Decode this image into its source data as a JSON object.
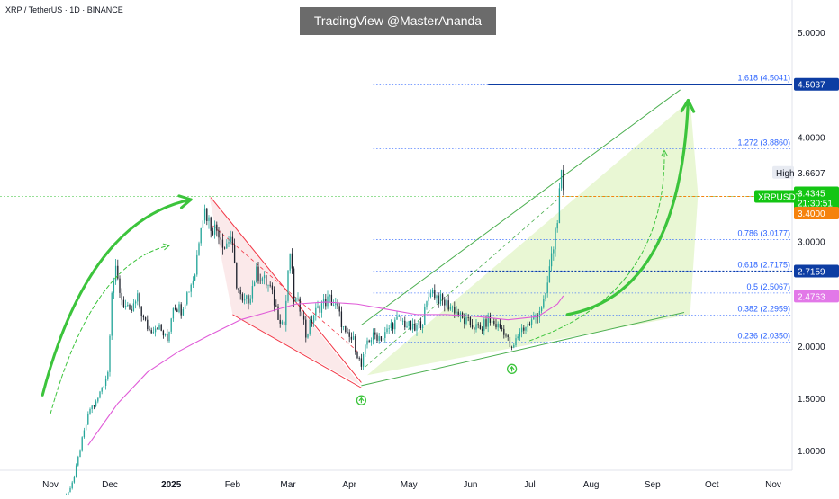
{
  "header": {
    "symbol_title": "XRP / TetherUS · 1D · BINANCE",
    "watermark": "TradingView @MasterAnanda"
  },
  "chart_data": {
    "type": "candlestick",
    "symbol": "XRPUSDT",
    "interval": "1D",
    "exchange": "BINANCE",
    "ylim": [
      0.75,
      5.5
    ],
    "y_ticks": [
      "1.0000",
      "1.5000",
      "2.0000",
      "2.5000",
      "3.0000",
      "3.5000",
      "4.0000",
      "4.5000",
      "5.0000"
    ],
    "x_ticks": [
      "Nov",
      "Dec",
      "2025",
      "Feb",
      "Mar",
      "Apr",
      "May",
      "Jun",
      "Jul",
      "Aug",
      "Sep",
      "Oct",
      "Nov"
    ],
    "date_start": "2024-11-05",
    "date_end": "2025-07-18",
    "close_path": [
      [
        "2024-11-05",
        0.5
      ],
      [
        "2024-11-10",
        0.6
      ],
      [
        "2024-11-13",
        0.75
      ],
      [
        "2024-11-17",
        1.1
      ],
      [
        "2024-11-21",
        1.4
      ],
      [
        "2024-11-24",
        1.45
      ],
      [
        "2024-11-27",
        1.6
      ],
      [
        "2024-11-30",
        1.75
      ],
      [
        "2024-12-02",
        2.55
      ],
      [
        "2024-12-04",
        2.7
      ],
      [
        "2024-12-07",
        2.45
      ],
      [
        "2024-12-11",
        2.3
      ],
      [
        "2024-12-15",
        2.45
      ],
      [
        "2024-12-18",
        2.25
      ],
      [
        "2024-12-21",
        2.15
      ],
      [
        "2024-12-25",
        2.2
      ],
      [
        "2024-12-30",
        2.05
      ],
      [
        "2025-01-02",
        2.4
      ],
      [
        "2025-01-06",
        2.35
      ],
      [
        "2025-01-09",
        2.5
      ],
      [
        "2025-01-13",
        2.7
      ],
      [
        "2025-01-16",
        3.2
      ],
      [
        "2025-01-18",
        3.3
      ],
      [
        "2025-01-21",
        3.15
      ],
      [
        "2025-01-25",
        3.1
      ],
      [
        "2025-01-28",
        2.95
      ],
      [
        "2025-01-31",
        3.05
      ],
      [
        "2025-02-03",
        2.6
      ],
      [
        "2025-02-06",
        2.4
      ],
      [
        "2025-02-09",
        2.45
      ],
      [
        "2025-02-13",
        2.7
      ],
      [
        "2025-02-16",
        2.65
      ],
      [
        "2025-02-20",
        2.55
      ],
      [
        "2025-02-24",
        2.3
      ],
      [
        "2025-02-27",
        2.2
      ],
      [
        "2025-03-02",
        2.9
      ],
      [
        "2025-03-04",
        2.45
      ],
      [
        "2025-03-08",
        2.35
      ],
      [
        "2025-03-10",
        2.1
      ],
      [
        "2025-03-14",
        2.3
      ],
      [
        "2025-03-18",
        2.4
      ],
      [
        "2025-03-22",
        2.45
      ],
      [
        "2025-03-26",
        2.35
      ],
      [
        "2025-03-30",
        2.1
      ],
      [
        "2025-04-03",
        2.05
      ],
      [
        "2025-04-07",
        1.8
      ],
      [
        "2025-04-10",
        2.05
      ],
      [
        "2025-04-14",
        2.1
      ],
      [
        "2025-04-18",
        2.08
      ],
      [
        "2025-04-22",
        2.2
      ],
      [
        "2025-04-26",
        2.25
      ],
      [
        "2025-04-30",
        2.2
      ],
      [
        "2025-05-04",
        2.15
      ],
      [
        "2025-05-08",
        2.25
      ],
      [
        "2025-05-12",
        2.55
      ],
      [
        "2025-05-16",
        2.45
      ],
      [
        "2025-05-20",
        2.4
      ],
      [
        "2025-05-24",
        2.35
      ],
      [
        "2025-05-28",
        2.25
      ],
      [
        "2025-06-02",
        2.2
      ],
      [
        "2025-06-06",
        2.15
      ],
      [
        "2025-06-10",
        2.25
      ],
      [
        "2025-06-14",
        2.2
      ],
      [
        "2025-06-18",
        2.15
      ],
      [
        "2025-06-22",
        1.95
      ],
      [
        "2025-06-26",
        2.15
      ],
      [
        "2025-06-30",
        2.2
      ],
      [
        "2025-07-03",
        2.25
      ],
      [
        "2025-07-06",
        2.35
      ],
      [
        "2025-07-09",
        2.45
      ],
      [
        "2025-07-11",
        2.75
      ],
      [
        "2025-07-13",
        2.95
      ],
      [
        "2025-07-15",
        3.25
      ],
      [
        "2025-07-17",
        3.6
      ],
      [
        "2025-07-18",
        3.43
      ]
    ],
    "moving_average": [
      [
        "2024-11-20",
        1.05
      ],
      [
        "2024-12-05",
        1.45
      ],
      [
        "2024-12-20",
        1.75
      ],
      [
        "2025-01-05",
        1.95
      ],
      [
        "2025-01-20",
        2.1
      ],
      [
        "2025-02-05",
        2.25
      ],
      [
        "2025-02-20",
        2.33
      ],
      [
        "2025-03-05",
        2.4
      ],
      [
        "2025-03-20",
        2.42
      ],
      [
        "2025-04-05",
        2.4
      ],
      [
        "2025-04-20",
        2.35
      ],
      [
        "2025-05-05",
        2.3
      ],
      [
        "2025-05-20",
        2.3
      ],
      [
        "2025-06-05",
        2.28
      ],
      [
        "2025-06-20",
        2.25
      ],
      [
        "2025-07-05",
        2.28
      ],
      [
        "2025-07-15",
        2.4
      ],
      [
        "2025-07-18",
        2.48
      ]
    ],
    "fib_levels": [
      {
        "label": "1.618 (4.5041)",
        "price": 4.5041
      },
      {
        "label": "1.272 (3.8860)",
        "price": 3.886
      },
      {
        "label": "0.786 (3.0177)",
        "price": 3.0177
      },
      {
        "label": "0.618 (2.7175)",
        "price": 2.7175
      },
      {
        "label": "0.5 (2.5067)",
        "price": 2.5067
      },
      {
        "label": "0.382 (2.2959)",
        "price": 2.2959
      },
      {
        "label": "0.236 (2.0350)",
        "price": 2.035
      }
    ],
    "price_labels": {
      "target": "4.5037",
      "high_caption": "High",
      "high_value": "3.6607",
      "symbol_badge": "XRPUSDT",
      "last_price": "3.4345",
      "countdown": "21:30:51",
      "open_price": "3.4000",
      "support_level": "2.7159",
      "ma_value": "2.4763"
    },
    "drawings": {
      "falling_channel_upper": [
        [
          "2025-01-21",
          3.42
        ],
        [
          "2025-04-07",
          1.65
        ]
      ],
      "falling_channel_lower": [
        [
          "2025-02-01",
          2.3
        ],
        [
          "2025-04-07",
          1.6
        ]
      ],
      "rising_channel_upper": [
        [
          "2025-04-07",
          2.2
        ],
        [
          "2025-09-15",
          4.45
        ]
      ],
      "rising_channel_lower": [
        [
          "2025-04-07",
          1.62
        ],
        [
          "2025-09-17",
          2.32
        ]
      ],
      "highlight_line": 3.43,
      "target_line": 4.5037,
      "support_line": 2.7159
    },
    "colors": {
      "up": "#26a69a",
      "down": "#ef5350",
      "candle_dark": "#1e222d",
      "fib": "#2962ff",
      "arrow": "#3cc43c",
      "ma": "#e05cd8",
      "channel_down": "#f23645",
      "channel_up": "#4caf50",
      "badge_green": "#13c513",
      "badge_orange": "#f5820d",
      "target_blue": "#0d3da3",
      "ma_badge": "#e278e8"
    }
  }
}
